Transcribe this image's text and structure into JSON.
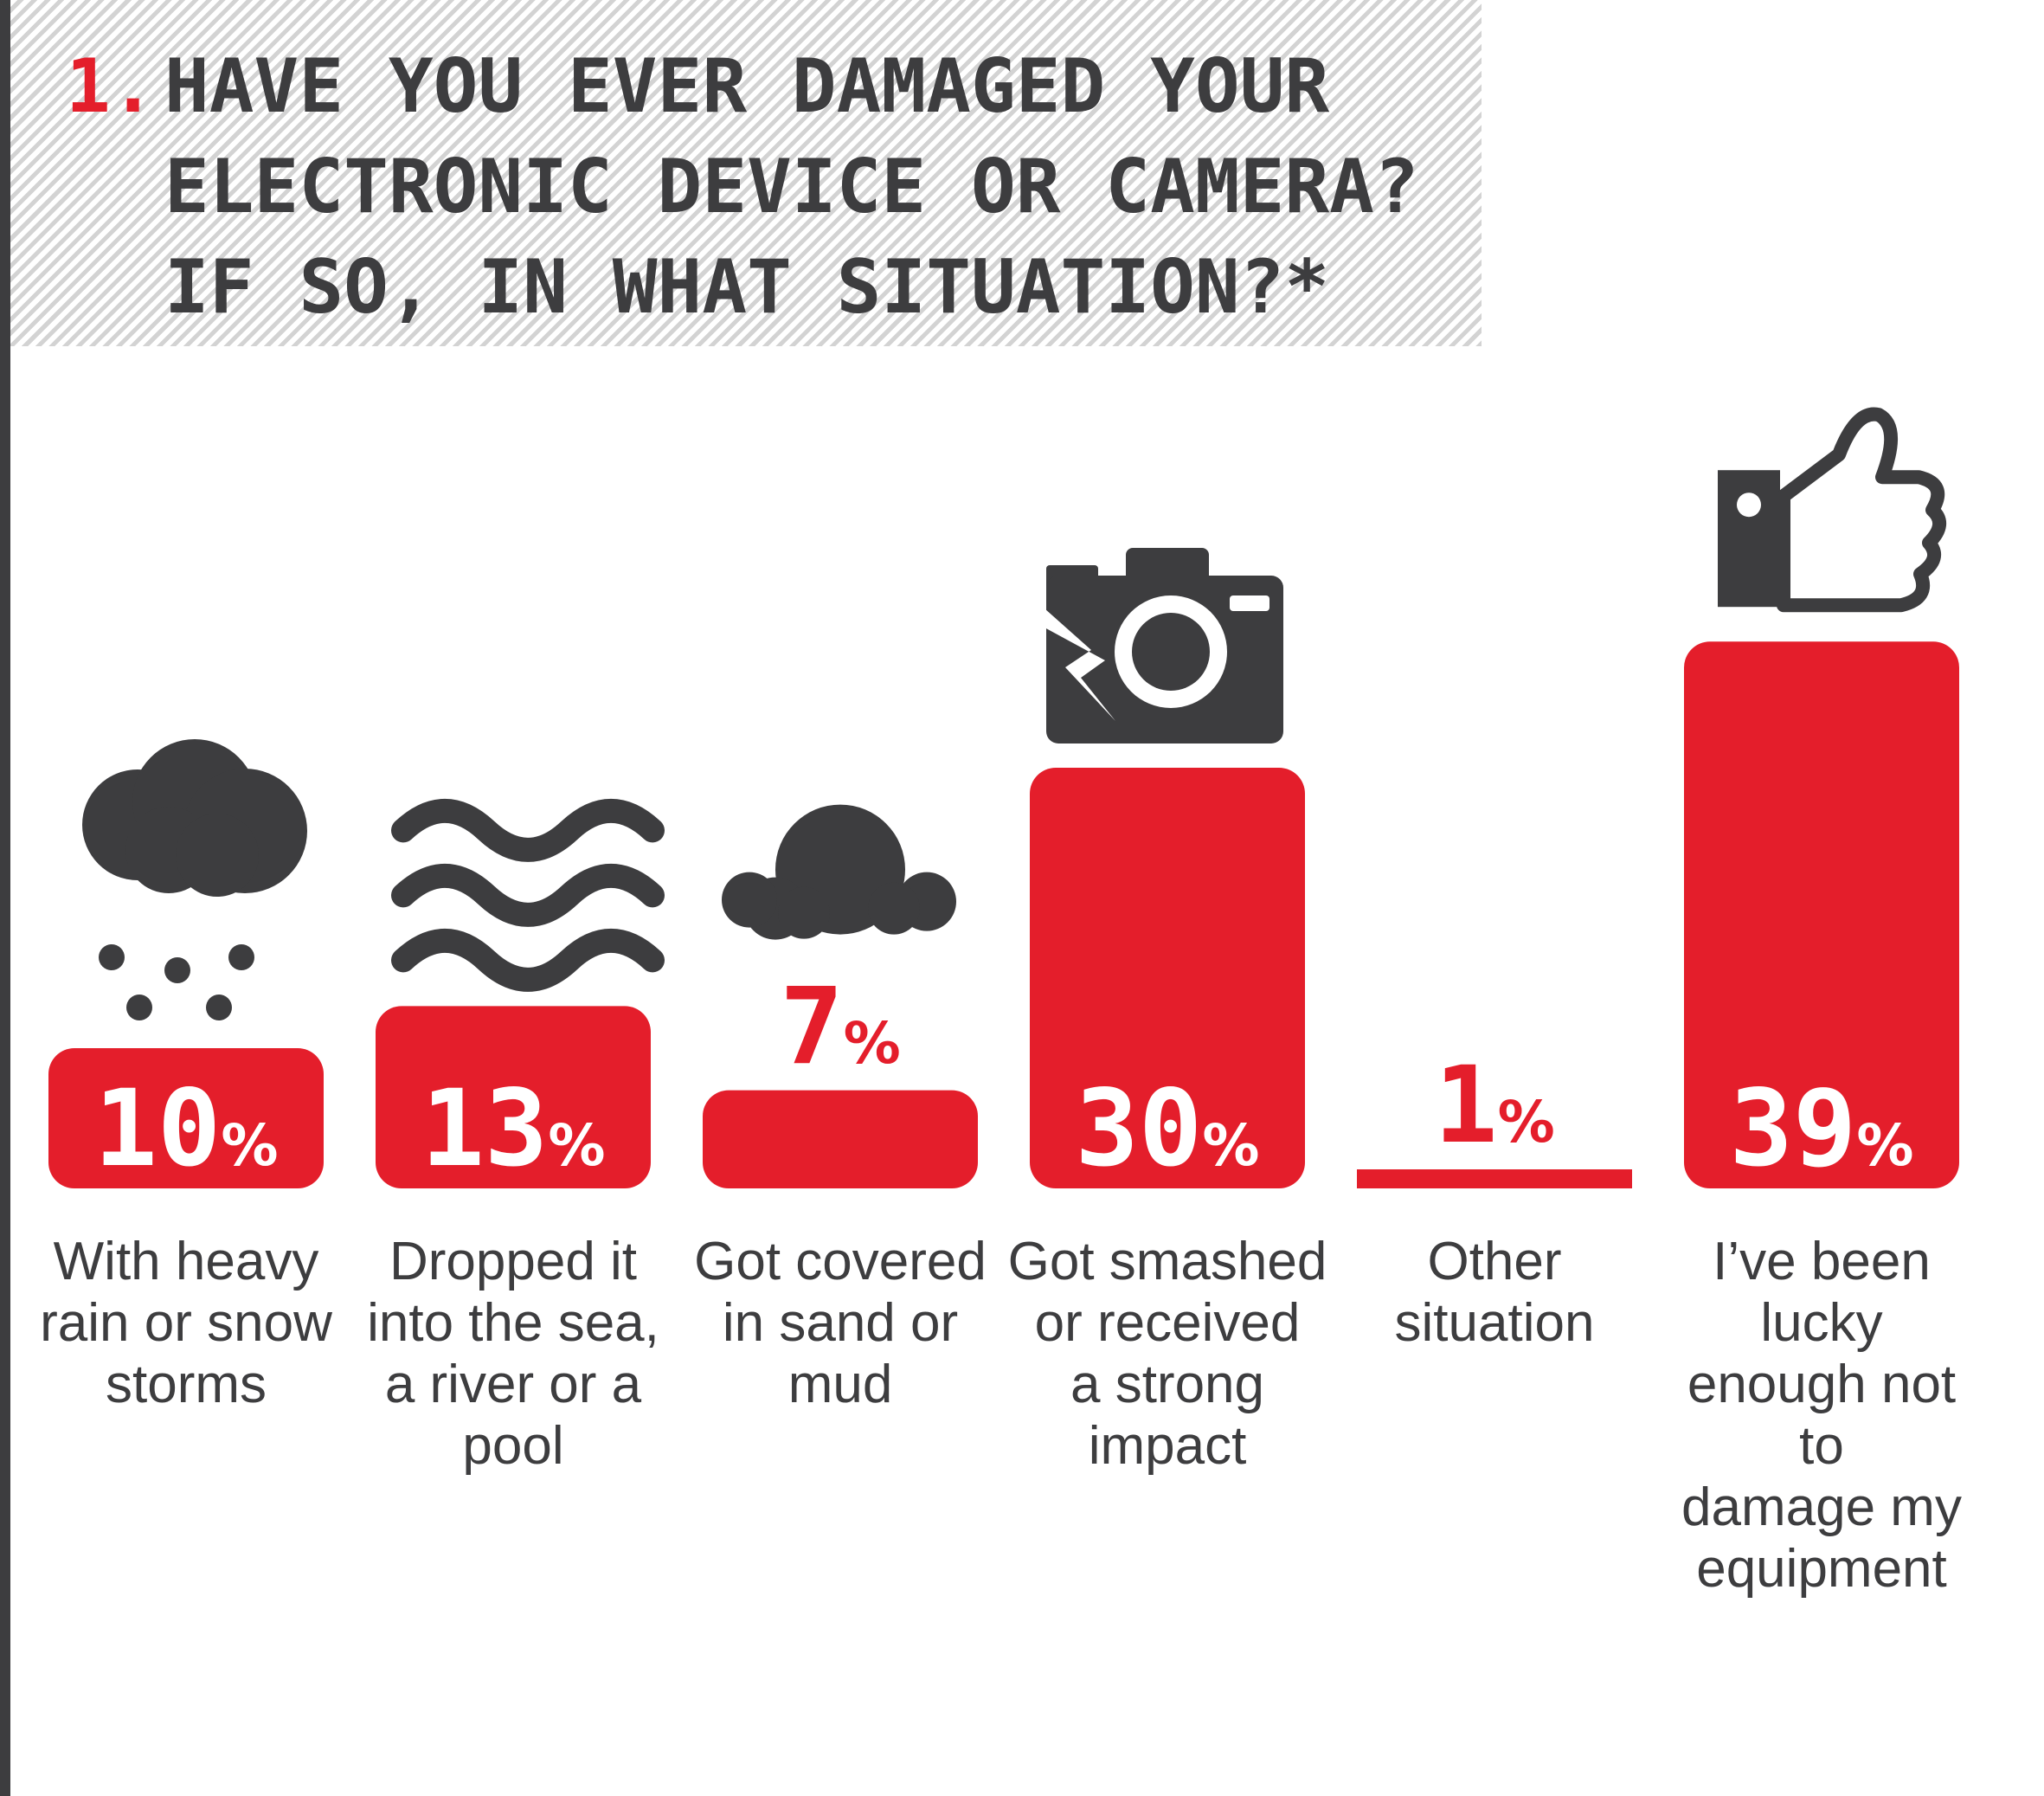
{
  "header": {
    "number": "1.",
    "lines": [
      "HAVE YOU EVER DAMAGED YOUR",
      "ELECTRONIC DEVICE OR CAMERA?",
      "IF SO, IN WHAT SITUATION?*"
    ]
  },
  "chart_data": {
    "type": "bar",
    "title": "HAVE YOU EVER DAMAGED YOUR ELECTRONIC DEVICE OR CAMERA? IF SO, IN WHAT SITUATION?*",
    "categories": [
      "With heavy\nrain or snow\nstorms",
      "Dropped it\ninto the sea,\na river or a\npool",
      "Got covered\nin sand or\nmud",
      "Got smashed\nor received\na strong\nimpact",
      "Other\nsituation",
      "I’ve been lucky\nenough not to\ndamage my\nequipment"
    ],
    "values": [
      10,
      13,
      7,
      30,
      1,
      39
    ],
    "value_labels": [
      "10",
      "13",
      "7",
      "30",
      "1",
      "39"
    ],
    "unit": "%",
    "icons": [
      "storm-cloud-icon",
      "waves-icon",
      "mud-icon",
      "smashed-camera-icon",
      "",
      "thumbs-up-icon"
    ],
    "bar_color": "#e41e2b",
    "icon_color": "#3d3d3f",
    "text_color": "#3d3d3f",
    "grid": false,
    "legend": "none"
  }
}
